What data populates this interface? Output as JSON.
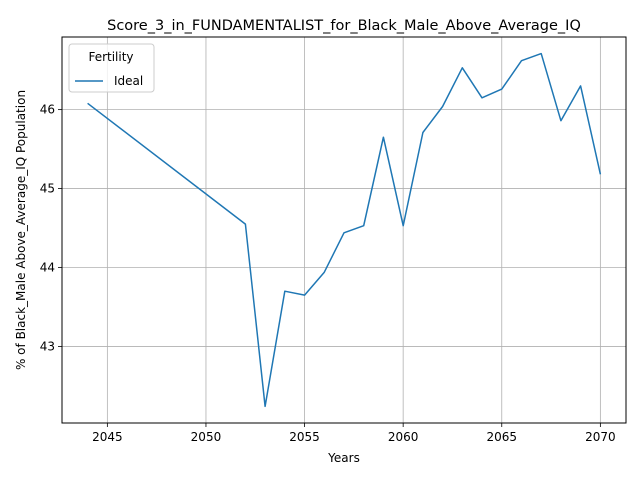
{
  "chart_data": {
    "type": "line",
    "title": "Score_3_in_FUNDAMENTALIST_for_Black_Male_Above_Average_IQ",
    "xlabel": "Years",
    "ylabel": "% of Black_Male Above_Average_IQ Population",
    "xlim": [
      2042.7,
      2071.3
    ],
    "ylim": [
      42.03,
      46.92
    ],
    "xticks": [
      2045,
      2050,
      2055,
      2060,
      2065,
      2070
    ],
    "yticks": [
      43,
      44,
      45,
      46
    ],
    "grid": true,
    "legend": {
      "title": "Fertility",
      "placement": "top-left"
    },
    "series": [
      {
        "name": "Ideal",
        "color": "#1f77b4",
        "x": [
          2044,
          2052,
          2053,
          2054,
          2055,
          2056,
          2057,
          2058,
          2059,
          2060,
          2061,
          2062,
          2063,
          2064,
          2065,
          2066,
          2067,
          2068,
          2069,
          2070
        ],
        "y": [
          46.08,
          44.55,
          42.24,
          43.7,
          43.65,
          43.94,
          44.44,
          44.53,
          45.65,
          44.53,
          45.71,
          46.04,
          46.53,
          46.15,
          46.26,
          46.62,
          46.71,
          45.86,
          46.3,
          45.18
        ]
      }
    ]
  }
}
